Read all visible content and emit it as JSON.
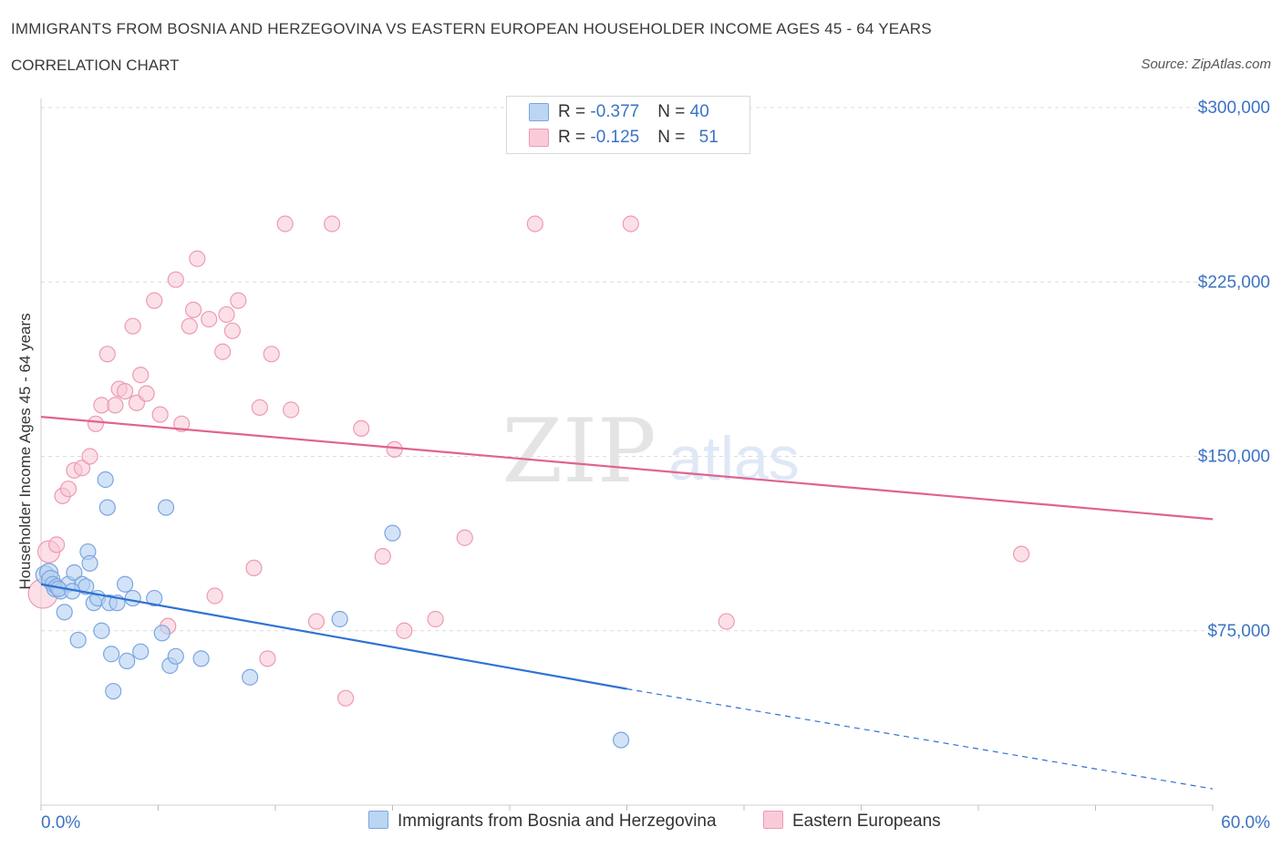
{
  "header": {
    "title": "IMMIGRANTS FROM BOSNIA AND HERZEGOVINA VS EASTERN EUROPEAN HOUSEHOLDER INCOME AGES 45 - 64 YEARS",
    "subtitle": "CORRELATION CHART",
    "source": "Source: ZipAtlas.com"
  },
  "watermark": {
    "zip": "ZIP",
    "atlas": "atlas"
  },
  "legend": {
    "rows": [
      {
        "r_label": "R = ",
        "r_value": "-0.377",
        "n_label": "N = ",
        "n_value": "40",
        "color": "#a9c8ef"
      },
      {
        "r_label": "R = ",
        "r_value": "-0.125",
        "n_label": "N = ",
        "n_value": "51",
        "color": "#f5b8ca"
      }
    ]
  },
  "bottom_legend": {
    "blue_label": "Immigrants from Bosnia and Herzegovina",
    "pink_label": "Eastern Europeans"
  },
  "colors": {
    "blue_fill": "#b6d1f2",
    "blue_stroke": "#7aa6e0",
    "blue_line": "#2f72d3",
    "pink_fill": "#f8c6d4",
    "pink_stroke": "#ee9ab3",
    "pink_line": "#e0638e",
    "tick_label": "#3b73c4",
    "grid": "#dcdcdc"
  },
  "chart_data": {
    "type": "scatter",
    "title": "IMMIGRANTS FROM BOSNIA AND HERZEGOVINA VS EASTERN EUROPEAN HOUSEHOLDER INCOME AGES 45 - 64 YEARS",
    "xlabel": "",
    "ylabel": "Householder Income Ages 45 - 64 years",
    "xlim": [
      0,
      60
    ],
    "ylim": [
      0,
      300000
    ],
    "x_tick_labels": [
      "0.0%",
      "60.0%"
    ],
    "y_ticks": [
      75000,
      150000,
      225000,
      300000
    ],
    "y_tick_labels": [
      "$75,000",
      "$150,000",
      "$225,000",
      "$300,000"
    ],
    "grid": true,
    "legend_position": "top-center",
    "series": [
      {
        "name": "Immigrants from Bosnia and Herzegovina",
        "color": "#7aa6e0",
        "points": [
          [
            0.2,
            99000
          ],
          [
            0.4,
            100000
          ],
          [
            0.5,
            97000
          ],
          [
            0.6,
            95000
          ],
          [
            0.7,
            93000
          ],
          [
            0.8,
            94000
          ],
          [
            1.0,
            92000
          ],
          [
            1.2,
            83000
          ],
          [
            1.4,
            95000
          ],
          [
            1.7,
            100000
          ],
          [
            1.9,
            71000
          ],
          [
            2.1,
            95000
          ],
          [
            2.3,
            94000
          ],
          [
            2.4,
            109000
          ],
          [
            2.5,
            104000
          ],
          [
            2.7,
            87000
          ],
          [
            2.9,
            89000
          ],
          [
            3.1,
            75000
          ],
          [
            3.3,
            140000
          ],
          [
            3.4,
            128000
          ],
          [
            3.5,
            87000
          ],
          [
            3.6,
            65000
          ],
          [
            3.7,
            49000
          ],
          [
            3.9,
            87000
          ],
          [
            4.3,
            95000
          ],
          [
            4.4,
            62000
          ],
          [
            4.7,
            89000
          ],
          [
            5.1,
            66000
          ],
          [
            5.8,
            89000
          ],
          [
            6.2,
            74000
          ],
          [
            6.4,
            128000
          ],
          [
            6.6,
            60000
          ],
          [
            6.9,
            64000
          ],
          [
            8.2,
            63000
          ],
          [
            10.7,
            55000
          ],
          [
            15.3,
            80000
          ],
          [
            18.0,
            117000
          ],
          [
            29.7,
            28000
          ],
          [
            0.9,
            93000
          ],
          [
            1.6,
            92000
          ]
        ],
        "trend": {
          "x_start": 0,
          "y_start": 95000,
          "x_solid_end": 30,
          "y_solid_end": 50000,
          "x_end": 60,
          "y_end": 7000
        }
      },
      {
        "name": "Eastern Europeans",
        "color": "#ee9ab3",
        "points": [
          [
            0.1,
            91000
          ],
          [
            0.4,
            109000
          ],
          [
            0.8,
            112000
          ],
          [
            1.1,
            133000
          ],
          [
            1.4,
            136000
          ],
          [
            1.7,
            144000
          ],
          [
            2.1,
            145000
          ],
          [
            2.5,
            150000
          ],
          [
            2.8,
            164000
          ],
          [
            3.1,
            172000
          ],
          [
            3.4,
            194000
          ],
          [
            3.8,
            172000
          ],
          [
            4.0,
            179000
          ],
          [
            4.3,
            178000
          ],
          [
            4.7,
            206000
          ],
          [
            4.9,
            173000
          ],
          [
            5.1,
            185000
          ],
          [
            5.4,
            177000
          ],
          [
            5.8,
            217000
          ],
          [
            6.1,
            168000
          ],
          [
            6.5,
            77000
          ],
          [
            6.9,
            226000
          ],
          [
            7.2,
            164000
          ],
          [
            7.6,
            206000
          ],
          [
            7.8,
            213000
          ],
          [
            8.0,
            235000
          ],
          [
            8.6,
            209000
          ],
          [
            8.9,
            90000
          ],
          [
            9.3,
            195000
          ],
          [
            9.5,
            211000
          ],
          [
            9.8,
            204000
          ],
          [
            10.1,
            217000
          ],
          [
            10.9,
            102000
          ],
          [
            11.2,
            171000
          ],
          [
            11.6,
            63000
          ],
          [
            11.8,
            194000
          ],
          [
            12.5,
            250000
          ],
          [
            12.8,
            170000
          ],
          [
            14.1,
            79000
          ],
          [
            14.9,
            250000
          ],
          [
            15.6,
            46000
          ],
          [
            16.4,
            162000
          ],
          [
            17.5,
            107000
          ],
          [
            18.1,
            153000
          ],
          [
            18.6,
            75000
          ],
          [
            20.2,
            80000
          ],
          [
            21.7,
            115000
          ],
          [
            25.3,
            250000
          ],
          [
            30.2,
            250000
          ],
          [
            35.1,
            79000
          ],
          [
            50.2,
            108000
          ]
        ],
        "trend": {
          "x_start": 0,
          "y_start": 167000,
          "x_end": 60,
          "y_end": 123000
        }
      }
    ]
  }
}
